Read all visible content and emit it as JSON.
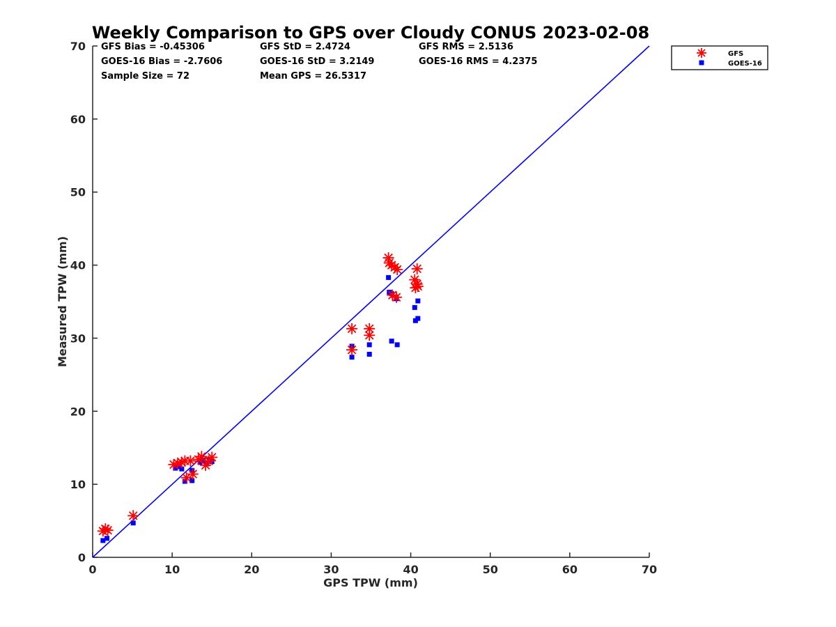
{
  "chart_data": {
    "type": "scatter",
    "title": "Weekly Comparison to GPS over Cloudy CONUS 2023-02-08",
    "xlabel": "GPS TPW (mm)",
    "ylabel": "Measured TPW (mm)",
    "xlim": [
      0,
      70
    ],
    "ylim": [
      0,
      70
    ],
    "xticks": [
      "0",
      "10",
      "20",
      "30",
      "40",
      "50",
      "60",
      "70"
    ],
    "yticks": [
      "0",
      "10",
      "20",
      "30",
      "40",
      "50",
      "60",
      "70"
    ],
    "grid": false,
    "legend_position": "top-right outside",
    "stats": [
      [
        "GFS Bias = -0.45306",
        "GFS StD = 2.4724",
        "GFS RMS = 2.5136"
      ],
      [
        "GOES-16 Bias = -2.7606",
        "GOES-16 StD = 3.2149",
        "GOES-16 RMS = 4.2375"
      ],
      [
        "Sample Size = 72",
        "Mean GPS = 26.5317",
        ""
      ]
    ],
    "reference_line": {
      "x": [
        0,
        70
      ],
      "y": [
        0,
        70
      ],
      "color": "#0000ff"
    },
    "series": [
      {
        "name": "GFS",
        "marker": "asterisk",
        "color": "#ff0000",
        "points": [
          [
            1.3,
            3.6
          ],
          [
            1.6,
            3.9
          ],
          [
            1.9,
            3.7
          ],
          [
            5.1,
            5.7
          ],
          [
            10.2,
            12.7
          ],
          [
            10.7,
            12.9
          ],
          [
            11.2,
            13.0
          ],
          [
            11.6,
            13.2
          ],
          [
            11.8,
            10.9
          ],
          [
            12.6,
            11.4
          ],
          [
            12.3,
            13.2
          ],
          [
            13.3,
            13.4
          ],
          [
            13.7,
            13.8
          ],
          [
            14.2,
            12.6
          ],
          [
            14.6,
            13.2
          ],
          [
            15.0,
            13.7
          ],
          [
            32.6,
            31.3
          ],
          [
            32.6,
            28.4
          ],
          [
            34.8,
            31.3
          ],
          [
            34.8,
            30.4
          ],
          [
            37.2,
            41.0
          ],
          [
            37.3,
            40.3
          ],
          [
            37.6,
            40.0
          ],
          [
            38.0,
            39.7
          ],
          [
            38.3,
            39.4
          ],
          [
            37.7,
            35.9
          ],
          [
            38.2,
            35.6
          ],
          [
            40.5,
            38.0
          ],
          [
            40.8,
            39.5
          ],
          [
            40.6,
            36.9
          ],
          [
            40.8,
            37.4
          ],
          [
            40.9,
            37.1
          ]
        ]
      },
      {
        "name": "GOES-16",
        "marker": "square",
        "color": "#0000ff",
        "points": [
          [
            1.3,
            2.3
          ],
          [
            1.8,
            2.6
          ],
          [
            5.1,
            4.7
          ],
          [
            10.4,
            12.2
          ],
          [
            10.8,
            12.4
          ],
          [
            11.2,
            12.1
          ],
          [
            11.6,
            10.4
          ],
          [
            12.5,
            10.5
          ],
          [
            12.5,
            11.9
          ],
          [
            13.5,
            13.0
          ],
          [
            13.9,
            13.3
          ],
          [
            14.3,
            12.8
          ],
          [
            14.7,
            13.3
          ],
          [
            15.0,
            13.1
          ],
          [
            32.6,
            28.9
          ],
          [
            32.6,
            27.4
          ],
          [
            34.8,
            29.1
          ],
          [
            34.8,
            27.8
          ],
          [
            37.2,
            38.3
          ],
          [
            37.3,
            36.3
          ],
          [
            37.6,
            36.1
          ],
          [
            37.6,
            29.6
          ],
          [
            38.2,
            35.4
          ],
          [
            38.3,
            29.1
          ],
          [
            40.5,
            34.2
          ],
          [
            40.6,
            32.4
          ],
          [
            40.9,
            35.1
          ],
          [
            40.9,
            32.7
          ]
        ]
      }
    ]
  }
}
